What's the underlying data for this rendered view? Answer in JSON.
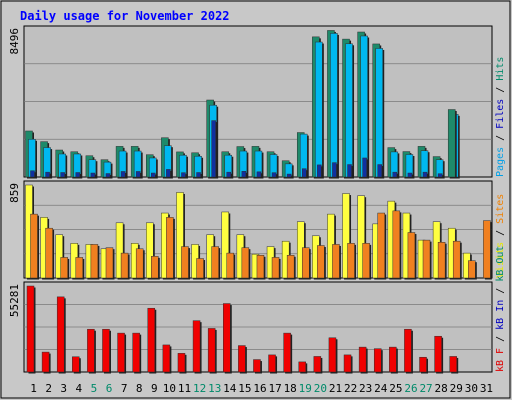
{
  "chart_data": {
    "type": "bar",
    "title": "Daily usage for November 2022",
    "categories": [
      "1",
      "2",
      "3",
      "4",
      "5",
      "6",
      "7",
      "8",
      "9",
      "10",
      "11",
      "12",
      "13",
      "14",
      "15",
      "16",
      "17",
      "18",
      "19",
      "20",
      "21",
      "22",
      "23",
      "24",
      "25",
      "26",
      "27",
      "28",
      "29",
      "30",
      "31"
    ],
    "weekend_categories": [
      "5",
      "6",
      "12",
      "13",
      "19",
      "20",
      "26",
      "27"
    ],
    "panels": [
      {
        "id": "top",
        "ymax_label": "8496",
        "ymax": 8496,
        "side_labels": [
          {
            "text": "Pages",
            "color": "#00a0e8"
          },
          {
            "text": " / ",
            "color": "#000000"
          },
          {
            "text": "Files",
            "color": "#0000c0"
          },
          {
            "text": " / ",
            "color": "#000000"
          },
          {
            "text": "Hits",
            "color": "#008a6a"
          }
        ],
        "series": [
          {
            "name": "Hits",
            "color": "#1e8a6a",
            "values": [
              2660,
              2044,
              1560,
              1460,
              1230,
              1000,
              1770,
              1770,
              1290,
              2270,
              1450,
              1400,
              4450,
              1460,
              1760,
              1770,
              1460,
              940,
              2570,
              8100,
              8470,
              7970,
              8380,
              7690,
              1700,
              1470,
              1770,
              1180
            ]
          },
          {
            "name": "Files",
            "color": "#00b8f0",
            "values": [
              2180,
              1700,
              1330,
              1330,
              1000,
              860,
              1500,
              1500,
              1100,
              1810,
              1260,
              1200,
              4150,
              1260,
              1500,
              1500,
              1300,
              760,
              2480,
              7800,
              8300,
              7700,
              8150,
              7430,
              1450,
              1300,
              1520,
              1000
            ]
          },
          {
            "name": "Pages",
            "color": "#1030a0",
            "values": [
              360,
              280,
              260,
              260,
              230,
              200,
              320,
              320,
              230,
              440,
              250,
              260,
              3260,
              280,
              330,
              300,
              250,
              170,
              480,
              700,
              830,
              720,
              1100,
              720,
              280,
              230,
              280,
              190
            ]
          }
        ],
        "extra_series": [
          {
            "name": "Files-extra",
            "color": "#00b8f0",
            "day_index": 28,
            "value": 3620
          },
          {
            "name": "Hits-extra",
            "color": "#1e8a6a",
            "day_index": 28,
            "value": 3900
          }
        ]
      },
      {
        "id": "mid",
        "ymax_label": "859",
        "ymax": 859,
        "side_labels": [
          {
            "text": "Visits",
            "color": "#e8e800"
          },
          {
            "text": " / ",
            "color": "#000000"
          },
          {
            "text": "Sites",
            "color": "#f08000"
          }
        ],
        "series": [
          {
            "name": "Visits",
            "color": "#ffff40",
            "values": [
              859,
              560,
              400,
              320,
              310,
              270,
              510,
              320,
              510,
              600,
              790,
              310,
              400,
              610,
              400,
              220,
              290,
              340,
              520,
              390,
              590,
              780,
              760,
              500,
              710,
              600,
              350,
              520,
              460,
              230,
              0
            ]
          },
          {
            "name": "Sites",
            "color": "#f08020",
            "values": [
              590,
              460,
              190,
              190,
              310,
              280,
              230,
              270,
              200,
              560,
              290,
              180,
              290,
              230,
              280,
              210,
              190,
              210,
              280,
              300,
              310,
              320,
              320,
              600,
              620,
              420,
              350,
              330,
              340,
              160,
              530
            ]
          }
        ]
      },
      {
        "id": "bot",
        "ymax_label": "55281",
        "ymax": 55281,
        "side_labels": [
          {
            "text": "kB F",
            "color": "#e00000"
          },
          {
            "text": " / ",
            "color": "#000000"
          },
          {
            "text": "kB In",
            "color": "#0000c0"
          },
          {
            "text": " / ",
            "color": "#000000"
          },
          {
            "text": "kB Out",
            "color": "#008a6a"
          }
        ],
        "series": [
          {
            "name": "kB F",
            "color": "#f00000",
            "values": [
              55281,
              12800,
              48300,
              9800,
              27500,
              27500,
              25000,
              25000,
              41000,
              17400,
              12000,
              33000,
              28000,
              44000,
              17000,
              8000,
              11000,
              25000,
              6500,
              10000,
              22000,
              11000,
              16000,
              15000,
              16000,
              27500,
              9500,
              23000,
              10000
            ]
          }
        ]
      }
    ]
  }
}
